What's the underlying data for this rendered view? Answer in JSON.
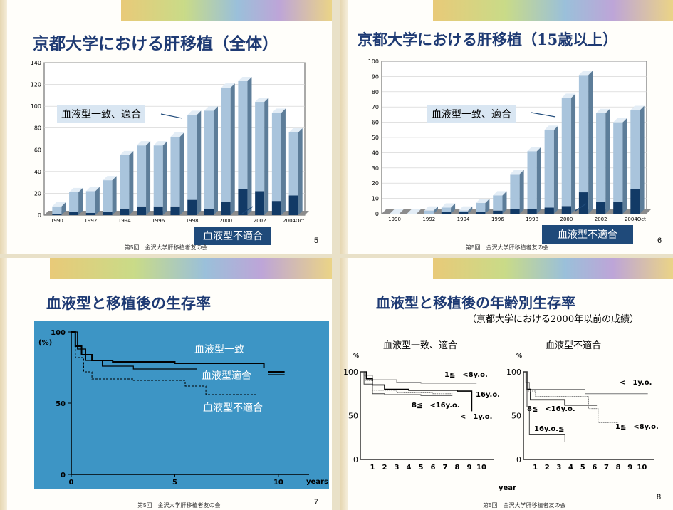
{
  "slides": {
    "s5": {
      "title": "京都大学における肝移植（全体）",
      "match_label": "血液型一致、適合",
      "mismatch_label": "血液型不適合",
      "footer": "第5回　金沢大学肝移植者友の会",
      "page": "5"
    },
    "s6": {
      "title": "京都大学における肝移植（15歳以上）",
      "match_label": "血液型一致、適合",
      "mismatch_label": "血液型不適合",
      "footer": "第5回　金沢大学肝移植者友の会",
      "page": "6"
    },
    "s7": {
      "title": "血液型と移植後の生存率",
      "footer": "第5回　金沢大学肝移植者友の会",
      "page": "7"
    },
    "s8": {
      "title": "血液型と移植後の年齢別生存率",
      "subtitle": "（京都大学における2000年以前の成績）",
      "left_heading": "血液型一致、適合",
      "right_heading": "血液型不適合",
      "footer": "第5回　金沢大学肝移植者友の会",
      "page": "8"
    }
  },
  "chart_data": [
    {
      "type": "bar",
      "title": "京都大学における肝移植（全体）",
      "x_tick_labels": [
        "1990",
        "1992",
        "1994",
        "1996",
        "1998",
        "2000",
        "2002",
        "2004Oct"
      ],
      "y_ticks": [
        0,
        20,
        40,
        60,
        80,
        100,
        120,
        140
      ],
      "ylim": [
        0,
        140
      ],
      "categories": [
        "1990",
        "1991",
        "1992",
        "1993",
        "1994",
        "1995",
        "1996",
        "1997",
        "1998",
        "1999",
        "2000",
        "2001",
        "2002",
        "2003",
        "2004Oct"
      ],
      "series": [
        {
          "name": "血液型不適合",
          "values": [
            1,
            3,
            2,
            3,
            6,
            8,
            8,
            8,
            14,
            6,
            12,
            24,
            22,
            13,
            18
          ]
        },
        {
          "name": "血液型一致、適合",
          "values": [
            7,
            18,
            20,
            29,
            49,
            56,
            56,
            64,
            78,
            90,
            105,
            99,
            82,
            81,
            58
          ]
        }
      ],
      "total_values": [
        8,
        21,
        22,
        32,
        55,
        64,
        64,
        72,
        92,
        96,
        117,
        123,
        104,
        94,
        76
      ]
    },
    {
      "type": "bar",
      "title": "京都大学における肝移植（15歳以上）",
      "x_tick_labels": [
        "1990",
        "1992",
        "1994",
        "1996",
        "1998",
        "2000",
        "2002",
        "2004Oct"
      ],
      "y_ticks": [
        0,
        10,
        20,
        30,
        40,
        50,
        60,
        70,
        80,
        90,
        100
      ],
      "ylim": [
        0,
        100
      ],
      "categories": [
        "1990",
        "1991",
        "1992",
        "1993",
        "1994",
        "1995",
        "1996",
        "1997",
        "1998",
        "1999",
        "2000",
        "2001",
        "2002",
        "2003",
        "2004Oct"
      ],
      "series": [
        {
          "name": "血液型不適合",
          "values": [
            0,
            0,
            0,
            1,
            1,
            1,
            2,
            3,
            3,
            4,
            5,
            14,
            8,
            8,
            16
          ]
        },
        {
          "name": "血液型一致、適合",
          "values": [
            0,
            0,
            2,
            3,
            1,
            6,
            10,
            23,
            38,
            51,
            71,
            77,
            58,
            52,
            52
          ]
        }
      ],
      "total_values": [
        0,
        0,
        2,
        4,
        2,
        7,
        12,
        26,
        41,
        55,
        76,
        91,
        66,
        60,
        68
      ]
    },
    {
      "type": "line",
      "title": "血液型と移植後の生存率",
      "ylabel": "(%)",
      "xlabel": "years",
      "y_ticks": [
        0,
        50,
        100
      ],
      "x_ticks": [
        0,
        5,
        10
      ],
      "xlim": [
        0,
        11
      ],
      "ylim": [
        0,
        100
      ],
      "series": [
        {
          "name": "血液型一致",
          "points": [
            [
              0,
              100
            ],
            [
              0.2,
              90
            ],
            [
              0.5,
              84
            ],
            [
              1,
              80
            ],
            [
              2,
              79
            ],
            [
              5,
              78
            ],
            [
              9.3,
              77
            ],
            [
              9.3,
              72
            ],
            [
              10.3,
              72
            ]
          ]
        },
        {
          "name": "血液型適合",
          "points": [
            [
              0,
              100
            ],
            [
              0.3,
              88
            ],
            [
              0.7,
              80
            ],
            [
              1.5,
              76
            ],
            [
              3,
              74
            ],
            [
              6,
              74
            ],
            [
              9.2,
              74
            ],
            [
              9.2,
              70
            ],
            [
              10.3,
              70
            ]
          ]
        },
        {
          "name": "血液型不適合",
          "points": [
            [
              0,
              100
            ],
            [
              0.2,
              82
            ],
            [
              0.6,
              72
            ],
            [
              1,
              67
            ],
            [
              3,
              66
            ],
            [
              5.5,
              62
            ],
            [
              6.5,
              56
            ],
            [
              9,
              56
            ]
          ]
        }
      ]
    },
    {
      "type": "line",
      "title": "血液型一致、適合",
      "xlabel": "year",
      "ylabel": "%",
      "y_ticks": [
        0,
        50,
        100
      ],
      "x_ticks": [
        1,
        2,
        3,
        4,
        5,
        6,
        7,
        8,
        9,
        10
      ],
      "xlim": [
        0,
        11
      ],
      "ylim": [
        0,
        100
      ],
      "series": [
        {
          "name": "1≦　<8y.o.",
          "points": [
            [
              0,
              100
            ],
            [
              0.3,
              96
            ],
            [
              1,
              91
            ],
            [
              3,
              88
            ],
            [
              5,
              87
            ],
            [
              9.6,
              87
            ]
          ]
        },
        {
          "name": "16y.o.",
          "points": [
            [
              0,
              100
            ],
            [
              0.5,
              92
            ],
            [
              1,
              85
            ],
            [
              2,
              80
            ],
            [
              4,
              79
            ],
            [
              8,
              78
            ],
            [
              9.2,
              78
            ],
            [
              9.2,
              55
            ]
          ]
        },
        {
          "name": "8≦　<16y.o.",
          "points": [
            [
              0,
              100
            ],
            [
              0.4,
              90
            ],
            [
              1,
              79
            ],
            [
              3,
              76
            ],
            [
              6,
              75
            ],
            [
              7.6,
              75
            ]
          ]
        },
        {
          "name": "<　1y.o.",
          "points": [
            [
              0,
              100
            ],
            [
              0.3,
              86
            ],
            [
              1,
              75
            ],
            [
              2,
              74
            ],
            [
              5,
              73
            ],
            [
              7.6,
              73
            ]
          ]
        }
      ]
    },
    {
      "type": "line",
      "title": "血液型不適合",
      "xlabel": "year",
      "ylabel": "%",
      "y_ticks": [
        0,
        50,
        100
      ],
      "x_ticks": [
        1,
        2,
        3,
        4,
        5,
        6,
        7,
        8,
        9,
        10
      ],
      "xlim": [
        0,
        11
      ],
      "ylim": [
        0,
        100
      ],
      "series": [
        {
          "name": "<　1y.o.",
          "points": [
            [
              0,
              100
            ],
            [
              0.2,
              88
            ],
            [
              0.5,
              80
            ],
            [
              2,
              80
            ],
            [
              5,
              80
            ],
            [
              5.2,
              75
            ],
            [
              10.5,
              75
            ]
          ]
        },
        {
          "name": "8≦　<16y.o.",
          "points": [
            [
              0,
              100
            ],
            [
              0.3,
              80
            ],
            [
              0.6,
              68
            ],
            [
              3.5,
              68
            ],
            [
              3.5,
              62
            ],
            [
              6.2,
              62
            ]
          ]
        },
        {
          "name": "1≦　<8y.o.",
          "points": [
            [
              0,
              100
            ],
            [
              0.3,
              78
            ],
            [
              1,
              72
            ],
            [
              4,
              72
            ],
            [
              5.5,
              58
            ],
            [
              6,
              58
            ],
            [
              6.3,
              42
            ],
            [
              8,
              42
            ]
          ]
        },
        {
          "name": "16y.o.≦",
          "points": [
            [
              0,
              100
            ],
            [
              0.3,
              60
            ],
            [
              0.5,
              28
            ],
            [
              3,
              28
            ],
            [
              3.5,
              20
            ]
          ]
        }
      ]
    }
  ]
}
